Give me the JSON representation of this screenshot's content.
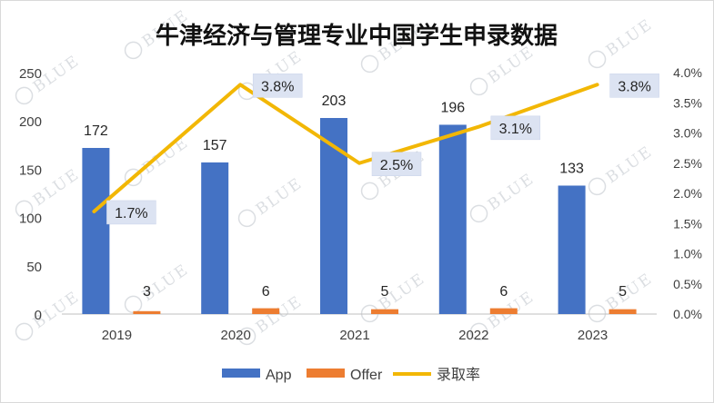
{
  "chart_data": {
    "type": "bar",
    "title": "牛津经济与管理专业中国学生申录数据",
    "categories": [
      "2019",
      "2020",
      "2021",
      "2022",
      "2023"
    ],
    "series": [
      {
        "name": "App",
        "type": "bar",
        "axis": "left",
        "color": "#4472C4",
        "values": [
          172,
          157,
          203,
          196,
          133
        ]
      },
      {
        "name": "Offer",
        "type": "bar",
        "axis": "left",
        "color": "#ED7D31",
        "values": [
          3,
          6,
          5,
          6,
          5
        ]
      },
      {
        "name": "录取率",
        "type": "line",
        "axis": "right",
        "color": "#F2B705",
        "values": [
          1.7,
          3.8,
          2.5,
          3.1,
          3.8
        ]
      }
    ],
    "y_left": {
      "min": 0,
      "max": 250,
      "step": 50,
      "ticks": [
        "0",
        "50",
        "100",
        "150",
        "200",
        "250"
      ]
    },
    "y_right": {
      "min": 0,
      "max": 4.0,
      "step": 0.5,
      "ticks": [
        "0.0%",
        "0.5%",
        "1.0%",
        "1.5%",
        "2.0%",
        "2.5%",
        "3.0%",
        "3.5%",
        "4.0%"
      ]
    },
    "rate_labels": [
      "1.7%",
      "3.8%",
      "2.5%",
      "3.1%",
      "3.8%"
    ],
    "legend_position": "bottom",
    "grid": false,
    "watermark": "BLUE"
  }
}
